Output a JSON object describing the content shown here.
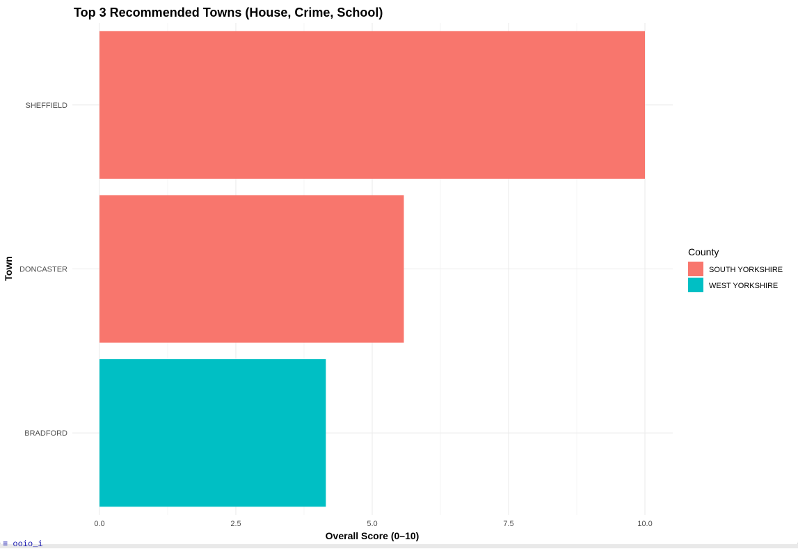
{
  "chart_data": {
    "type": "bar",
    "orientation": "horizontal",
    "title": "Top 3 Recommended Towns (House, Crime, School)",
    "xlabel": "Overall Score (0–10)",
    "ylabel": "Town",
    "xlim": [
      0,
      10.5
    ],
    "x_ticks": [
      0,
      2.5,
      5,
      7.5,
      10
    ],
    "x_tick_labels": [
      "0.0",
      "2.5",
      "5.0",
      "7.5",
      "10.0"
    ],
    "grid": true,
    "categories": [
      "SHEFFIELD",
      "DONCASTER",
      "BRADFORD"
    ],
    "values": [
      10.0,
      5.58,
      4.15
    ],
    "bar_county": [
      "SOUTH YORKSHIRE",
      "SOUTH YORKSHIRE",
      "WEST YORKSHIRE"
    ],
    "legend": {
      "title": "County",
      "position": "right",
      "entries": [
        {
          "label": "SOUTH YORKSHIRE",
          "color": "#F8766D"
        },
        {
          "label": "WEST YORKSHIRE",
          "color": "#00BFC4"
        }
      ]
    }
  },
  "bottom_strip": {
    "text": "≡ ooio_i"
  }
}
